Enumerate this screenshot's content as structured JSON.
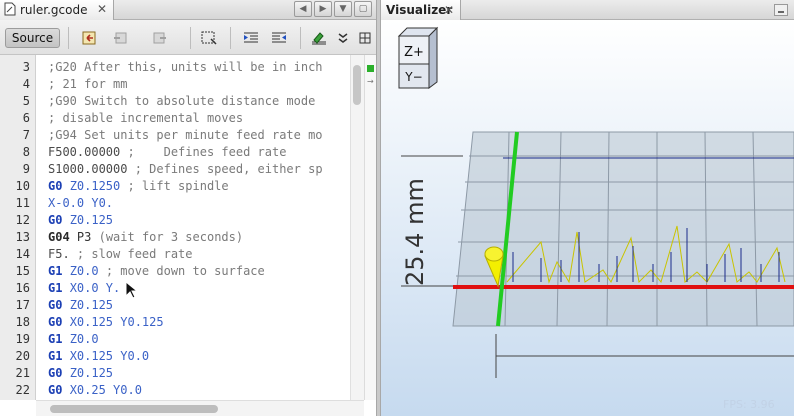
{
  "editor": {
    "tab_title": "ruler.gcode",
    "close_symbol": "✕",
    "source_button": "Source",
    "lines": [
      {
        "num": "3",
        "parts": [
          {
            "t": ";G20 After this, units will be in inch",
            "c": "c-cmt"
          }
        ]
      },
      {
        "num": "4",
        "parts": [
          {
            "t": "; 21 for mm",
            "c": "c-cmt"
          }
        ]
      },
      {
        "num": "5",
        "parts": [
          {
            "t": ";G90 Switch to absolute distance mode",
            "c": "c-cmt"
          }
        ]
      },
      {
        "num": "6",
        "parts": [
          {
            "t": "; disable incremental moves",
            "c": "c-cmt"
          }
        ]
      },
      {
        "num": "7",
        "parts": [
          {
            "t": ";G94 Set units per minute feed rate mo",
            "c": "c-cmt"
          }
        ]
      },
      {
        "num": "8",
        "parts": [
          {
            "t": "F500.00000 ",
            "c": "c-txt"
          },
          {
            "t": ";    Defines feed rate",
            "c": "c-cmt"
          }
        ]
      },
      {
        "num": "9",
        "parts": [
          {
            "t": "S1000.00000 ",
            "c": "c-txt"
          },
          {
            "t": "; Defines speed, either sp",
            "c": "c-cmt"
          }
        ]
      },
      {
        "num": "10",
        "parts": [
          {
            "t": "G0 ",
            "c": "c-kw"
          },
          {
            "t": "Z0.1250 ",
            "c": "c-num"
          },
          {
            "t": "; lift spindle",
            "c": "c-cmt"
          }
        ]
      },
      {
        "num": "11",
        "parts": [
          {
            "t": "X-0.0 Y0.",
            "c": "c-num"
          }
        ]
      },
      {
        "num": "12",
        "parts": [
          {
            "t": "G0 ",
            "c": "c-kw"
          },
          {
            "t": "Z0.125",
            "c": "c-num"
          }
        ]
      },
      {
        "num": "13",
        "parts": [
          {
            "t": "G04 ",
            "c": "c-g"
          },
          {
            "t": "P3 ",
            "c": "c-plain"
          },
          {
            "t": "(wait for 3 seconds)",
            "c": "c-cmt"
          }
        ]
      },
      {
        "num": "14",
        "parts": [
          {
            "t": "F5. ",
            "c": "c-txt"
          },
          {
            "t": "; slow feed rate",
            "c": "c-cmt"
          }
        ]
      },
      {
        "num": "15",
        "parts": [
          {
            "t": "G1 ",
            "c": "c-kw"
          },
          {
            "t": "Z0.0 ",
            "c": "c-num"
          },
          {
            "t": "; move down to surface",
            "c": "c-cmt"
          }
        ]
      },
      {
        "num": "16",
        "parts": [
          {
            "t": "G1 ",
            "c": "c-kw"
          },
          {
            "t": "X0.0 Y.",
            "c": "c-num"
          }
        ]
      },
      {
        "num": "17",
        "parts": [
          {
            "t": "G0 ",
            "c": "c-kw"
          },
          {
            "t": "Z0.125",
            "c": "c-num"
          }
        ]
      },
      {
        "num": "18",
        "parts": [
          {
            "t": "G0 ",
            "c": "c-kw"
          },
          {
            "t": "X0.125 Y0.125",
            "c": "c-num"
          }
        ]
      },
      {
        "num": "19",
        "parts": [
          {
            "t": "G1 ",
            "c": "c-kw"
          },
          {
            "t": "Z0.0",
            "c": "c-num"
          }
        ]
      },
      {
        "num": "20",
        "parts": [
          {
            "t": "G1 ",
            "c": "c-kw"
          },
          {
            "t": "X0.125 Y0.0",
            "c": "c-num"
          }
        ]
      },
      {
        "num": "21",
        "parts": [
          {
            "t": "G0 ",
            "c": "c-kw"
          },
          {
            "t": "Z0.125",
            "c": "c-num"
          }
        ]
      },
      {
        "num": "22",
        "parts": [
          {
            "t": "G0 ",
            "c": "c-kw"
          },
          {
            "t": "X0.25 Y0.0",
            "c": "c-num"
          }
        ]
      }
    ]
  },
  "visualizer": {
    "tab_title": "Visualizer",
    "close_symbol": "✕",
    "view_cube": {
      "top_label": "Z+",
      "front_label": "Y−"
    },
    "dimension_label": "25.4 mm",
    "fps_label": "FPS: 3.96",
    "colors": {
      "background_top": "#ffffff",
      "background_bottom": "#c8dcf0",
      "x_axis": "#e01010",
      "y_axis": "#22cc22",
      "path": "#1a2a8a",
      "rapid": "#e8e000"
    }
  },
  "icons": [
    "document-icon",
    "close-icon",
    "nav-left-icon",
    "nav-right-icon",
    "dropdown-icon",
    "maximize-icon",
    "go-back-icon",
    "go-forward-icon",
    "comment-icon",
    "shift-left-icon",
    "shift-right-icon",
    "expand-icon",
    "grid-icon",
    "minimize-icon",
    "cursor-icon"
  ]
}
